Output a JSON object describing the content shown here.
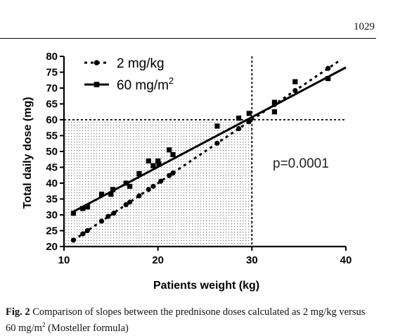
{
  "page": {
    "number": "1029"
  },
  "caption": {
    "label": "Fig. 2",
    "text_before": "Comparison of slopes between the prednisone doses calculated as 2 mg/kg versus 60 mg/m",
    "sup": "2",
    "text_after": " (Mosteller formula)"
  },
  "chart_data": {
    "type": "scatter",
    "xlabel": "Patients weight (kg)",
    "ylabel": "Total daily dose (mg)",
    "xlim": [
      10,
      40
    ],
    "ylim": [
      20,
      80
    ],
    "x_ticks": [
      10,
      20,
      30,
      40
    ],
    "y_ticks": [
      20,
      25,
      30,
      35,
      40,
      45,
      50,
      55,
      60,
      65,
      70,
      75,
      80
    ],
    "legend_position": "top-left",
    "annotation": "p=0.0001",
    "shaded_region": {
      "x": [
        10,
        30
      ],
      "y": [
        20,
        60
      ],
      "pattern": "dotted"
    },
    "reference_lines": [
      {
        "orientation": "vertical",
        "value": 30,
        "style": "dashed"
      },
      {
        "orientation": "horizontal",
        "value": 60,
        "style": "dashed"
      }
    ],
    "series": [
      {
        "name": "2 mg/kg",
        "marker": "circle",
        "line": "dotted",
        "fit": [
          [
            11,
            22
          ],
          [
            39.5,
            79
          ]
        ],
        "points": [
          [
            11,
            22
          ],
          [
            12,
            24
          ],
          [
            12.5,
            25
          ],
          [
            14,
            28
          ],
          [
            14.7,
            29.5
          ],
          [
            15.3,
            30.5
          ],
          [
            16.6,
            33.2
          ],
          [
            17,
            34
          ],
          [
            18,
            36
          ],
          [
            19,
            38
          ],
          [
            19.5,
            39
          ],
          [
            20.3,
            40.6
          ],
          [
            21.2,
            42.4
          ],
          [
            21.6,
            43.2
          ],
          [
            26.3,
            52.6
          ],
          [
            28.6,
            57.2
          ],
          [
            29.7,
            59.4
          ],
          [
            32.4,
            64.8
          ],
          [
            34.6,
            69.2
          ],
          [
            38.1,
            76.2
          ]
        ]
      },
      {
        "name": "60 mg/m2",
        "marker": "square",
        "line": "solid",
        "fit": [
          [
            11,
            31
          ],
          [
            40,
            76.5
          ]
        ],
        "points": [
          [
            11,
            30.5
          ],
          [
            12,
            32
          ],
          [
            12.5,
            32.5
          ],
          [
            14,
            36.5
          ],
          [
            15,
            36.5
          ],
          [
            15.2,
            38
          ],
          [
            16.6,
            40
          ],
          [
            17,
            39
          ],
          [
            18,
            43
          ],
          [
            19,
            47
          ],
          [
            19.5,
            45.5
          ],
          [
            20,
            47
          ],
          [
            20.1,
            46
          ],
          [
            21.2,
            50.5
          ],
          [
            21.6,
            49
          ],
          [
            26.3,
            58
          ],
          [
            28.6,
            60.5
          ],
          [
            29.7,
            62
          ],
          [
            32.4,
            62.5
          ],
          [
            32.4,
            65.5
          ],
          [
            34.6,
            72
          ],
          [
            38.1,
            73
          ]
        ]
      }
    ]
  }
}
